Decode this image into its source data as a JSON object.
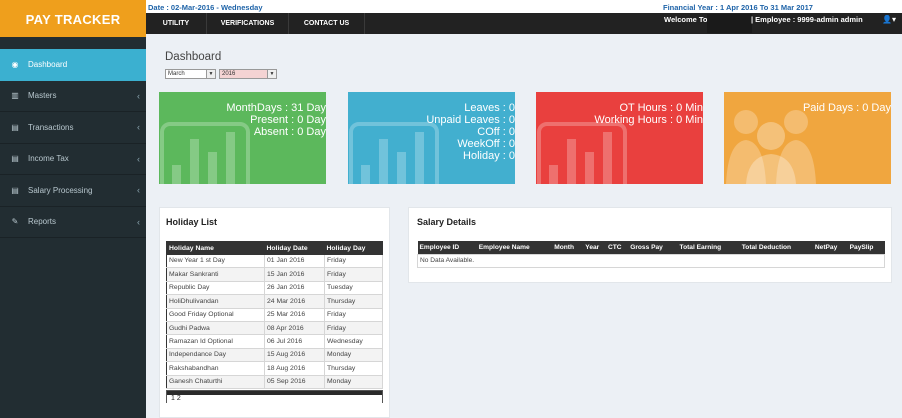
{
  "brand": "PAY TRACKER",
  "infobar": {
    "date": "Date : 02-Mar-2016 - Wednesday",
    "financial_year": "Financial Year : 1 Apr 2016 To 31 Mar 2017"
  },
  "topnav": {
    "links": [
      "UTILITY",
      "VERIFICATIONS",
      "CONTACT US"
    ],
    "welcome": "Welcome To",
    "employee": "| Employee : 9999-admin admin",
    "user_icon": "user-icon"
  },
  "sidebar": {
    "items": [
      {
        "label": "Dashboard",
        "icon": "dashboard-icon",
        "active": true
      },
      {
        "label": "Masters",
        "icon": "chart-icon"
      },
      {
        "label": "Transactions",
        "icon": "list-icon"
      },
      {
        "label": "Income Tax",
        "icon": "list-icon"
      },
      {
        "label": "Salary Processing",
        "icon": "list-icon"
      },
      {
        "label": "Reports",
        "icon": "pencil-icon"
      }
    ],
    "chevron": "‹"
  },
  "dashboard": {
    "title": "Dashboard",
    "month": "March",
    "year": "2016"
  },
  "stats": {
    "attendance": [
      "MonthDays : 31 Day",
      "Present : 0 Day",
      "Absent : 0 Day"
    ],
    "leaves": [
      "Leaves : 0",
      "Unpaid Leaves : 0",
      "COff : 0",
      "WeekOff : 0",
      "Holiday : 0"
    ],
    "hours": [
      "OT Hours : 0 Min",
      "Working Hours : 0 Min"
    ],
    "paid": [
      "Paid Days : 0 Day"
    ],
    "colors": [
      "#5cb85c",
      "#42afcf",
      "#e9403e",
      "#f0a63f"
    ]
  },
  "holiday_list": {
    "title": "Holiday List",
    "headers": [
      "Holiday Name",
      "Holiday Date",
      "Holiday Day"
    ],
    "rows": [
      [
        "New Year 1 st Day",
        "01 Jan 2016",
        "Friday"
      ],
      [
        "Makar Sankranti",
        "15 Jan 2016",
        "Friday"
      ],
      [
        "Republic Day",
        "26 Jan 2016",
        "Tuesday"
      ],
      [
        "HoliDhulivandan",
        "24 Mar 2016",
        "Thursday"
      ],
      [
        "Good Friday Optional",
        "25 Mar 2016",
        "Friday"
      ],
      [
        "Gudhi Padwa",
        "08 Apr 2016",
        "Friday"
      ],
      [
        "Ramazan Id Optional",
        "06 Jul 2016",
        "Wednesday"
      ],
      [
        "Independance Day",
        "15 Aug 2016",
        "Monday"
      ],
      [
        "Rakshabandhan",
        "18 Aug 2016",
        "Thursday"
      ],
      [
        "Ganesh Chaturthi",
        "05 Sep 2016",
        "Monday"
      ]
    ],
    "pager": "1 2"
  },
  "salary_details": {
    "title": "Salary Details",
    "headers": [
      "Employee ID",
      "Employee Name",
      "Month",
      "Year",
      "CTC",
      "Gross Pay",
      "Total Earning",
      "Total Deduction",
      "NetPay",
      "PaySlip"
    ],
    "empty": "No Data Available."
  }
}
